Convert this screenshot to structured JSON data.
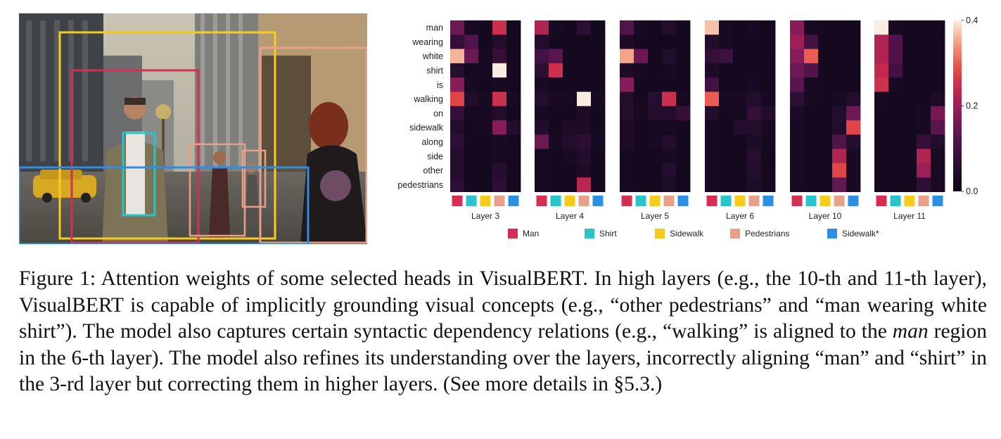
{
  "figure": {
    "photo_description_alt": "",
    "regions": [
      {
        "label": "Man",
        "color": "#d62d52"
      },
      {
        "label": "Shirt",
        "color": "#2ac3c9"
      },
      {
        "label": "Sidewalk",
        "color": "#f6cc1c"
      },
      {
        "label": "Pedestrians",
        "color": "#e8a08a"
      },
      {
        "label": "Sidewalk*",
        "color": "#2d8ee6"
      }
    ]
  },
  "chart_data": {
    "type": "heatmap",
    "words": [
      "man",
      "wearing",
      "white",
      "shirt",
      "is",
      "walking",
      "on",
      "sidewalk",
      "along",
      "side",
      "other",
      "pedestrians"
    ],
    "colorbar": {
      "min": 0.0,
      "max": 0.4,
      "ticks": [
        "0.4",
        "0.2",
        "0.0"
      ]
    },
    "panels": [
      {
        "name": "Layer 3",
        "values": [
          [
            0.15,
            0.03,
            0.02,
            0.25,
            0.02
          ],
          [
            0.08,
            0.12,
            0.02,
            0.05,
            0.02
          ],
          [
            0.36,
            0.15,
            0.03,
            0.08,
            0.02
          ],
          [
            0.06,
            0.02,
            0.03,
            0.4,
            0.02
          ],
          [
            0.18,
            0.03,
            0.02,
            0.03,
            0.02
          ],
          [
            0.28,
            0.05,
            0.03,
            0.25,
            0.03
          ],
          [
            0.08,
            0.02,
            0.03,
            0.05,
            0.02
          ],
          [
            0.05,
            0.02,
            0.03,
            0.18,
            0.05
          ],
          [
            0.07,
            0.02,
            0.02,
            0.03,
            0.02
          ],
          [
            0.05,
            0.02,
            0.02,
            0.03,
            0.02
          ],
          [
            0.05,
            0.02,
            0.02,
            0.06,
            0.02
          ],
          [
            0.07,
            0.02,
            0.02,
            0.07,
            0.02
          ]
        ]
      },
      {
        "name": "Layer 4",
        "values": [
          [
            0.22,
            0.03,
            0.02,
            0.07,
            0.02
          ],
          [
            0.05,
            0.02,
            0.02,
            0.02,
            0.02
          ],
          [
            0.1,
            0.13,
            0.02,
            0.02,
            0.02
          ],
          [
            0.07,
            0.25,
            0.02,
            0.02,
            0.02
          ],
          [
            0.03,
            0.02,
            0.02,
            0.02,
            0.02
          ],
          [
            0.05,
            0.03,
            0.03,
            0.4,
            0.03
          ],
          [
            0.03,
            0.02,
            0.02,
            0.04,
            0.02
          ],
          [
            0.05,
            0.02,
            0.04,
            0.04,
            0.02
          ],
          [
            0.15,
            0.03,
            0.05,
            0.07,
            0.03
          ],
          [
            0.03,
            0.02,
            0.03,
            0.05,
            0.02
          ],
          [
            0.03,
            0.02,
            0.02,
            0.04,
            0.02
          ],
          [
            0.03,
            0.02,
            0.02,
            0.23,
            0.02
          ]
        ]
      },
      {
        "name": "Layer 5",
        "values": [
          [
            0.12,
            0.03,
            0.02,
            0.05,
            0.02
          ],
          [
            0.04,
            0.02,
            0.02,
            0.02,
            0.02
          ],
          [
            0.35,
            0.15,
            0.02,
            0.05,
            0.02
          ],
          [
            0.04,
            0.03,
            0.02,
            0.03,
            0.02
          ],
          [
            0.18,
            0.02,
            0.02,
            0.02,
            0.02
          ],
          [
            0.05,
            0.02,
            0.06,
            0.25,
            0.03
          ],
          [
            0.05,
            0.03,
            0.05,
            0.05,
            0.08
          ],
          [
            0.04,
            0.02,
            0.03,
            0.03,
            0.02
          ],
          [
            0.04,
            0.02,
            0.03,
            0.05,
            0.02
          ],
          [
            0.03,
            0.02,
            0.02,
            0.03,
            0.02
          ],
          [
            0.03,
            0.02,
            0.02,
            0.06,
            0.02
          ],
          [
            0.03,
            0.02,
            0.02,
            0.04,
            0.02
          ]
        ]
      },
      {
        "name": "Layer 6",
        "values": [
          [
            0.37,
            0.03,
            0.02,
            0.03,
            0.02
          ],
          [
            0.05,
            0.03,
            0.02,
            0.02,
            0.02
          ],
          [
            0.08,
            0.09,
            0.02,
            0.02,
            0.02
          ],
          [
            0.04,
            0.02,
            0.02,
            0.02,
            0.02
          ],
          [
            0.1,
            0.02,
            0.02,
            0.03,
            0.02
          ],
          [
            0.3,
            0.03,
            0.03,
            0.05,
            0.03
          ],
          [
            0.05,
            0.02,
            0.03,
            0.08,
            0.05
          ],
          [
            0.03,
            0.02,
            0.05,
            0.05,
            0.03
          ],
          [
            0.03,
            0.02,
            0.02,
            0.04,
            0.02
          ],
          [
            0.03,
            0.02,
            0.02,
            0.06,
            0.02
          ],
          [
            0.03,
            0.02,
            0.02,
            0.05,
            0.02
          ],
          [
            0.03,
            0.02,
            0.02,
            0.04,
            0.02
          ]
        ]
      },
      {
        "name": "Layer 10",
        "values": [
          [
            0.18,
            0.03,
            0.02,
            0.02,
            0.02
          ],
          [
            0.2,
            0.1,
            0.02,
            0.02,
            0.02
          ],
          [
            0.18,
            0.3,
            0.02,
            0.02,
            0.02
          ],
          [
            0.15,
            0.12,
            0.02,
            0.02,
            0.02
          ],
          [
            0.13,
            0.03,
            0.02,
            0.02,
            0.02
          ],
          [
            0.07,
            0.03,
            0.02,
            0.03,
            0.05
          ],
          [
            0.04,
            0.02,
            0.02,
            0.05,
            0.15
          ],
          [
            0.03,
            0.02,
            0.02,
            0.05,
            0.28
          ],
          [
            0.03,
            0.02,
            0.02,
            0.12,
            0.05
          ],
          [
            0.03,
            0.02,
            0.02,
            0.22,
            0.03
          ],
          [
            0.03,
            0.02,
            0.02,
            0.28,
            0.03
          ],
          [
            0.03,
            0.02,
            0.02,
            0.14,
            0.03
          ]
        ]
      },
      {
        "name": "Layer 11",
        "values": [
          [
            0.4,
            0.03,
            0.02,
            0.02,
            0.02
          ],
          [
            0.22,
            0.12,
            0.02,
            0.02,
            0.02
          ],
          [
            0.22,
            0.12,
            0.02,
            0.02,
            0.02
          ],
          [
            0.24,
            0.1,
            0.02,
            0.02,
            0.02
          ],
          [
            0.25,
            0.03,
            0.02,
            0.02,
            0.02
          ],
          [
            0.03,
            0.02,
            0.02,
            0.02,
            0.04
          ],
          [
            0.02,
            0.02,
            0.02,
            0.03,
            0.16
          ],
          [
            0.02,
            0.02,
            0.02,
            0.03,
            0.13
          ],
          [
            0.02,
            0.02,
            0.02,
            0.08,
            0.05
          ],
          [
            0.02,
            0.02,
            0.02,
            0.22,
            0.03
          ],
          [
            0.02,
            0.02,
            0.02,
            0.2,
            0.03
          ],
          [
            0.02,
            0.02,
            0.02,
            0.07,
            0.03
          ]
        ]
      }
    ]
  },
  "caption": {
    "part1": "Figure 1: Attention weights of some selected heads in VisualBERT. In high layers (e.g., the 10-th and 11-th layer), VisualBERT is capable of implicitly grounding visual concepts (e.g., “other pedestrians” and “man wearing white shirt”). The model also captures certain syntactic dependency relations (e.g., “walking” is aligned to the ",
    "emph": "man",
    "part2": " region in the 6-th layer). The model also refines its understanding over the layers, incorrectly aligning “man” and “shirt” in the 3-rd layer but correcting them in higher layers. (See more details in §5.3.)"
  }
}
